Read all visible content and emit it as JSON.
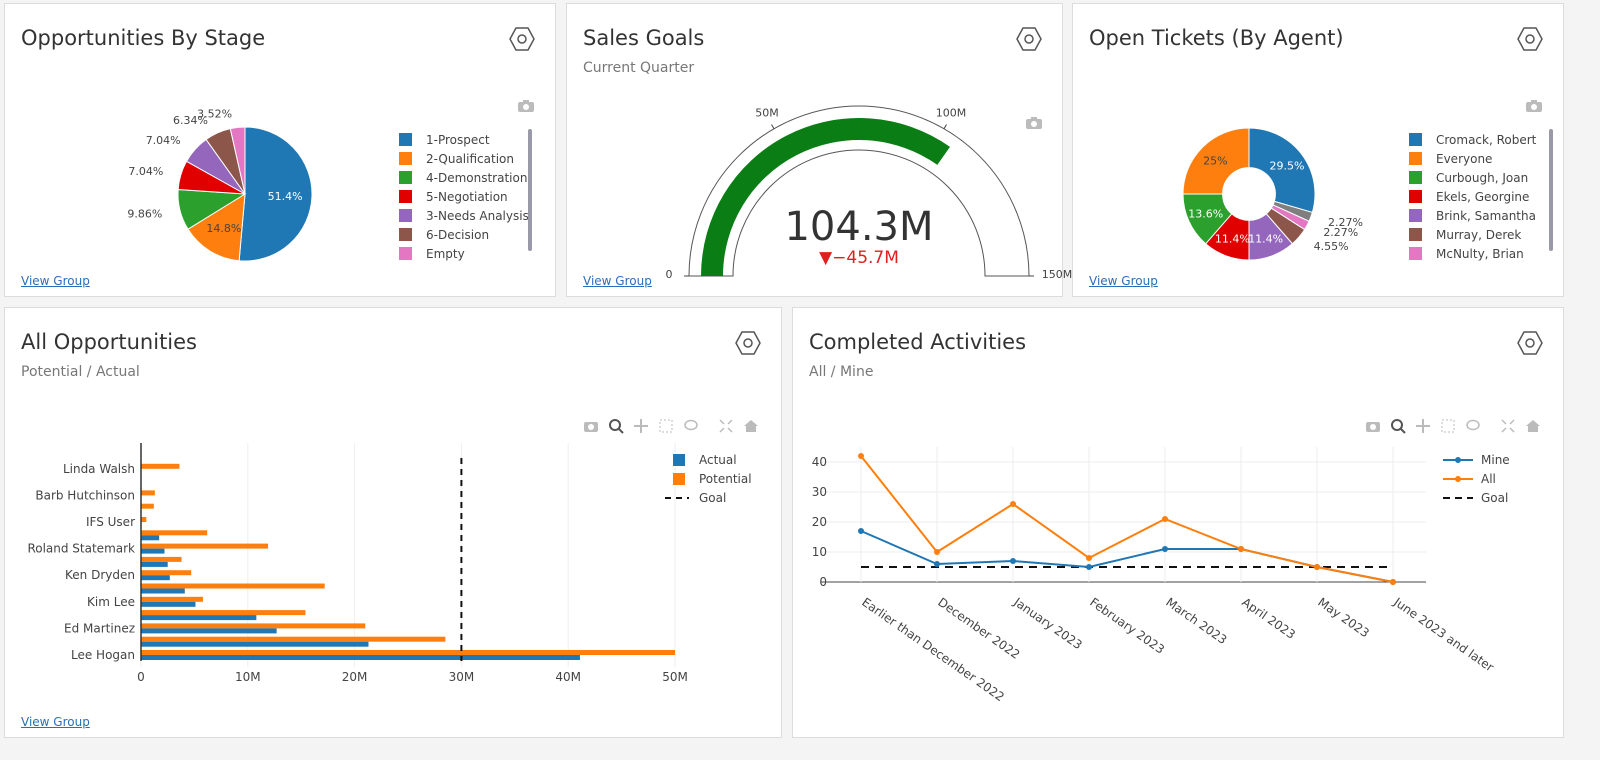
{
  "common": {
    "view_group": "View Group"
  },
  "panels": {
    "stage": {
      "title": "Opportunities By Stage"
    },
    "goals": {
      "title": "Sales Goals",
      "subtitle": "Current Quarter"
    },
    "tickets": {
      "title": "Open Tickets (By Agent)"
    },
    "opps": {
      "title": "All Opportunities",
      "subtitle": "Potential / Actual"
    },
    "activities": {
      "title": "Completed Activities",
      "subtitle": "All / Mine"
    }
  },
  "icons": {
    "settings": "hexagon-gear-icon",
    "snapshot": "camera-icon",
    "zoom": "zoom-icon",
    "pan": "pan-icon",
    "select": "box-select-icon",
    "lasso": "lasso-icon",
    "autoscale": "autoscale-icon",
    "reset": "home-icon"
  },
  "chart_data": [
    {
      "type": "pie",
      "id": "stage",
      "labels": [
        "1-Prospect",
        "2-Qualification",
        "4-Demonstration",
        "5-Negotiation",
        "3-Needs Analysis",
        "6-Decision",
        "Empty"
      ],
      "values": [
        51.4,
        14.8,
        9.86,
        7.04,
        7.04,
        6.34,
        3.52
      ],
      "text": [
        "51.4%",
        "14.8%",
        "9.86%",
        "7.04%",
        "7.04%",
        "6.34%",
        "3.52%"
      ],
      "colors": [
        "#1f77b4",
        "#ff7f0e",
        "#2ca02c",
        "#e00000",
        "#9467bd",
        "#8c564b",
        "#e377c2"
      ],
      "legend": "right"
    },
    {
      "type": "gauge",
      "id": "goals",
      "value": 104.3,
      "value_text": "104.3M",
      "delta_text": "▼−45.7M",
      "range": [
        0,
        150
      ],
      "ticks": [
        "0",
        "50M",
        "100M",
        "150M"
      ],
      "tick_values": [
        0,
        50,
        100,
        150
      ],
      "bar_color": "#0a7d14",
      "delta_color": "#e02020"
    },
    {
      "type": "pie",
      "id": "tickets",
      "hole": true,
      "labels": [
        "Cromack, Robert",
        "",
        "McNulty, Brian",
        "Murray, Derek",
        "Brink, Samantha",
        "Ekels, Georgine",
        "Curbough, Joan",
        "Everyone"
      ],
      "values": [
        29.5,
        2.27,
        2.27,
        4.55,
        11.4,
        11.4,
        13.6,
        25
      ],
      "text": [
        "29.5%",
        "2.27%",
        "2.27%",
        "4.55%",
        "11.4%",
        "11.4%",
        "13.6%",
        "25%"
      ],
      "colors": [
        "#1f77b4",
        "#7f7f7f",
        "#e377c2",
        "#8c564b",
        "#9467bd",
        "#e00000",
        "#2ca02c",
        "#ff7f0e"
      ],
      "legend_items": [
        "Cromack, Robert",
        "Everyone",
        "Curbough, Joan",
        "Ekels, Georgine",
        "Brink, Samantha",
        "Murray, Derek",
        "McNulty, Brian"
      ],
      "legend_colors": [
        "#1f77b4",
        "#ff7f0e",
        "#2ca02c",
        "#e00000",
        "#9467bd",
        "#8c564b",
        "#e377c2"
      ],
      "legend": "right"
    },
    {
      "type": "bar",
      "orientation": "horizontal",
      "id": "opps",
      "categories": [
        "Lee Hogan",
        "",
        "Ed Martinez",
        "",
        "Kim Lee",
        "",
        "Ken Dryden",
        "",
        "Roland Statemark",
        "",
        "IFS User",
        "",
        "Barb Hutchinson",
        "",
        "Linda Walsh",
        ""
      ],
      "series": [
        {
          "name": "Actual",
          "color": "#1f77b4",
          "values": [
            41.1,
            21.3,
            12.7,
            10.8,
            5.1,
            4.1,
            2.7,
            2.5,
            2.2,
            1.7,
            0.05,
            0,
            0,
            0,
            0,
            0
          ]
        },
        {
          "name": "Potential",
          "color": "#ff7f0e",
          "values": [
            50,
            28.5,
            21,
            15.4,
            5.8,
            17.2,
            4.7,
            3.8,
            11.9,
            6.2,
            0.5,
            1.2,
            1.3,
            0,
            3.6,
            0
          ]
        }
      ],
      "goal": {
        "name": "Goal",
        "value": 30
      },
      "xlim": [
        0,
        50
      ],
      "xticks": [
        "0",
        "10M",
        "20M",
        "30M",
        "40M",
        "50M"
      ],
      "xtick_values": [
        0,
        10,
        20,
        30,
        40,
        50
      ],
      "grid": true,
      "legend": "top-right"
    },
    {
      "type": "line",
      "id": "activities",
      "categories": [
        "Earlier than December 2022",
        "December 2022",
        "January 2023",
        "February 2023",
        "March 2023",
        "April 2023",
        "May 2023",
        "June 2023 and later"
      ],
      "series": [
        {
          "name": "Mine",
          "color": "#1f77b4",
          "values": [
            17,
            6,
            7,
            5,
            11,
            11,
            5,
            0
          ]
        },
        {
          "name": "All",
          "color": "#ff7f0e",
          "values": [
            42,
            10,
            26,
            8,
            21,
            11,
            5,
            0
          ]
        }
      ],
      "goal": {
        "name": "Goal",
        "value": 5
      },
      "ylim": [
        0,
        45
      ],
      "yticks": [
        "0",
        "10",
        "20",
        "30",
        "40"
      ],
      "ytick_values": [
        0,
        10,
        20,
        30,
        40
      ],
      "grid": true,
      "legend": "top-right"
    }
  ]
}
